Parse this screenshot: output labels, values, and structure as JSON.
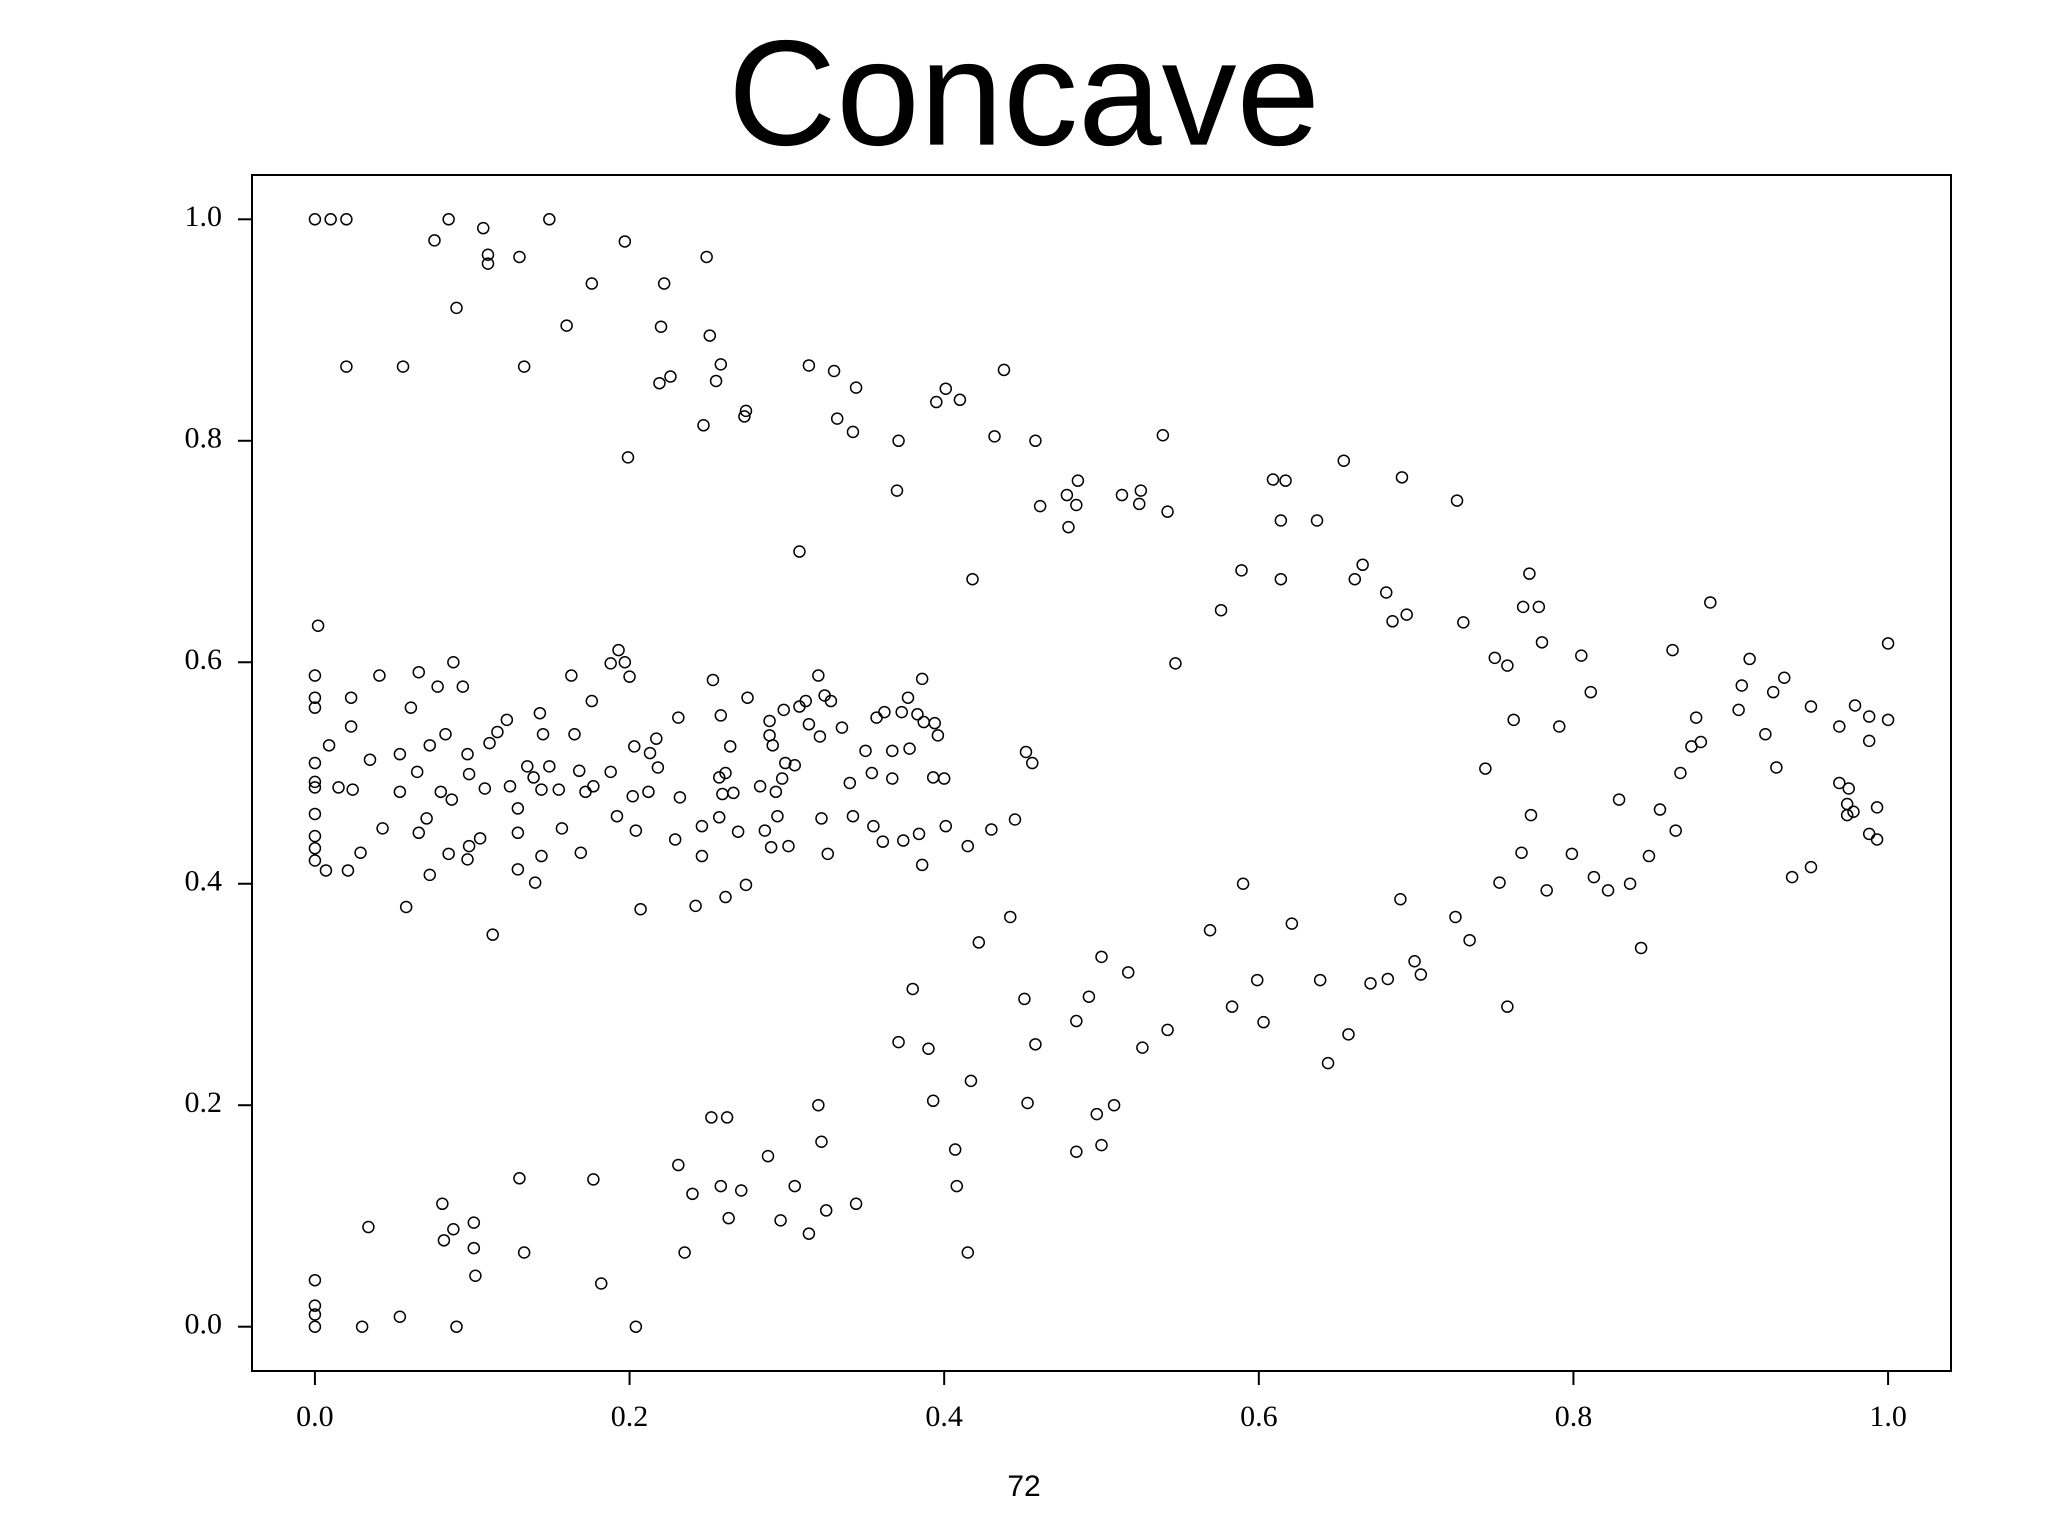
{
  "chart_data": {
    "type": "scatter",
    "title": "Concave",
    "x": [
      0,
      0.01,
      0.02,
      0.02,
      0.056,
      0.076,
      0.085,
      0.09,
      0.107,
      0.11,
      0.11,
      0.13,
      0.133,
      0.149,
      0.16,
      0.176,
      0.197,
      0.199,
      0.22,
      0.222,
      0.219,
      0.226,
      0.249,
      0.251,
      0.255,
      0.258,
      0.247,
      0.274,
      0.273,
      0.314,
      0.33,
      0.332,
      0.344,
      0.342,
      0.371,
      0.37,
      0.308,
      0.395,
      0.401,
      0.41,
      0.418,
      0.432,
      0.438,
      0.458,
      0.461,
      0.478,
      0.479,
      0.484,
      0.485,
      0.513,
      0.525,
      0.524,
      0.539,
      0.542,
      0.547,
      0.576,
      0.589,
      0.609,
      0.617,
      0.614,
      0.614,
      0.637,
      0.654,
      0.661,
      0.666,
      0.681,
      0.685,
      0.691,
      0.694,
      0.726,
      0.73,
      0.75,
      0.758,
      0.762,
      0.768,
      0.772,
      0.778,
      0.78,
      0.791,
      0.805,
      0.811,
      0.863,
      0.887,
      0.878,
      0.881,
      0.875,
      0.868,
      0.912,
      0.907,
      0.905,
      0.927,
      0.934,
      0.922,
      0.929,
      0.951,
      0.969,
      0.979,
      0.988,
      0.988,
      1.0,
      1.0,
      0.002,
      0,
      0,
      0,
      0,
      0,
      0,
      0,
      0,
      0,
      0,
      0.007,
      0.009,
      0.015,
      0.023,
      0.023,
      0.021,
      0.024,
      0.029,
      0.035,
      0.041,
      0.043,
      0.054,
      0.054,
      0.058,
      0.061,
      0.065,
      0.066,
      0.066,
      0.071,
      0.073,
      0.073,
      0.078,
      0.08,
      0.083,
      0.085,
      0.088,
      0.087,
      0.094,
      0.097,
      0.098,
      0.098,
      0.097,
      0.105,
      0.108,
      0.111,
      0.113,
      0.116,
      0.122,
      0.124,
      0.129,
      0.129,
      0.129,
      0.135,
      0.139,
      0.14,
      0.143,
      0.145,
      0.144,
      0.144,
      0.149,
      0.155,
      0.157,
      0.163,
      0.165,
      0.168,
      0.172,
      0.169,
      0.176,
      0.177,
      0.188,
      0.193,
      0.188,
      0.197,
      0.2,
      0.192,
      0.203,
      0.202,
      0.204,
      0.207,
      0.213,
      0.217,
      0.212,
      0.218,
      0.229,
      0.231,
      0.232,
      0.242,
      0.246,
      0.246,
      0.253,
      0.258,
      0.257,
      0.261,
      0.257,
      0.259,
      0.261,
      0.264,
      0.266,
      0.269,
      0.275,
      0.274,
      0.283,
      0.286,
      0.289,
      0.289,
      0.29,
      0.291,
      0.293,
      0.294,
      0.297,
      0.298,
      0.299,
      0.301,
      0.305,
      0.308,
      0.312,
      0.314,
      0.32,
      0.321,
      0.322,
      0.324,
      0.326,
      0.328,
      0.335,
      0.34,
      0.342,
      0.35,
      0.354,
      0.355,
      0.357,
      0.361,
      0.362,
      0.367,
      0.367,
      0.373,
      0.374,
      0.377,
      0.378,
      0.383,
      0.384,
      0.386,
      0.387,
      0.386,
      0.393,
      0.394,
      0.396,
      0.4,
      0.401,
      0.415,
      0.445,
      0.43,
      0.452,
      0.456,
      0,
      0,
      0,
      0,
      0.03,
      0.034,
      0.054,
      0.081,
      0.082,
      0.088,
      0.09,
      0.101,
      0.101,
      0.102,
      0.13,
      0.133,
      0.177,
      0.182,
      0.204,
      0.231,
      0.235,
      0.24,
      0.252,
      0.258,
      0.262,
      0.263,
      0.271,
      0.288,
      0.296,
      0.305,
      0.314,
      0.32,
      0.322,
      0.325,
      0.344,
      0.371,
      0.38,
      0.39,
      0.393,
      0.407,
      0.408,
      0.415,
      0.417,
      0.422,
      0.442,
      0.451,
      0.453,
      0.458,
      0.484,
      0.484,
      0.492,
      0.497,
      0.5,
      0.5,
      0.508,
      0.517,
      0.526,
      0.542,
      0.569,
      0.583,
      0.59,
      0.599,
      0.603,
      0.621,
      0.639,
      0.644,
      0.657,
      0.671,
      0.682,
      0.69,
      0.699,
      0.703,
      0.725,
      0.734,
      0.744,
      0.753,
      0.758,
      0.767,
      0.773,
      0.783,
      0.799,
      0.813,
      0.822,
      0.829,
      0.836,
      0.843,
      0.848,
      0.855,
      0.865,
      0.939,
      0.951,
      0.969,
      0.975,
      0.974,
      0.974,
      0.978,
      0.988,
      0.993,
      0.993
    ],
    "values": [
      1.0,
      1.0,
      1.0,
      0.867,
      0.867,
      0.981,
      1.0,
      0.92,
      0.992,
      0.968,
      0.96,
      0.966,
      0.867,
      1.0,
      0.904,
      0.942,
      0.98,
      0.785,
      0.903,
      0.942,
      0.852,
      0.858,
      0.966,
      0.895,
      0.854,
      0.869,
      0.814,
      0.827,
      0.822,
      0.868,
      0.863,
      0.82,
      0.848,
      0.808,
      0.8,
      0.755,
      0.7,
      0.835,
      0.847,
      0.837,
      0.675,
      0.804,
      0.864,
      0.8,
      0.741,
      0.751,
      0.722,
      0.742,
      0.764,
      0.751,
      0.755,
      0.743,
      0.805,
      0.736,
      0.599,
      0.647,
      0.683,
      0.765,
      0.764,
      0.728,
      0.675,
      0.728,
      0.782,
      0.675,
      0.688,
      0.663,
      0.637,
      0.767,
      0.643,
      0.746,
      0.636,
      0.604,
      0.597,
      0.548,
      0.65,
      0.68,
      0.65,
      0.618,
      0.542,
      0.606,
      0.573,
      0.611,
      0.654,
      0.55,
      0.528,
      0.524,
      0.5,
      0.603,
      0.579,
      0.557,
      0.573,
      0.586,
      0.535,
      0.505,
      0.56,
      0.542,
      0.561,
      0.551,
      0.529,
      0.617,
      0.548,
      0.633,
      0.588,
      0.568,
      0.559,
      0.509,
      0.492,
      0.487,
      0.463,
      0.443,
      0.432,
      0.421,
      0.412,
      0.525,
      0.487,
      0.568,
      0.542,
      0.412,
      0.485,
      0.428,
      0.512,
      0.588,
      0.45,
      0.517,
      0.483,
      0.379,
      0.559,
      0.501,
      0.591,
      0.446,
      0.459,
      0.525,
      0.408,
      0.578,
      0.483,
      0.535,
      0.427,
      0.6,
      0.476,
      0.578,
      0.517,
      0.499,
      0.434,
      0.422,
      0.441,
      0.486,
      0.527,
      0.354,
      0.537,
      0.548,
      0.488,
      0.468,
      0.446,
      0.413,
      0.506,
      0.496,
      0.401,
      0.554,
      0.535,
      0.485,
      0.425,
      0.506,
      0.485,
      0.45,
      0.588,
      0.535,
      0.502,
      0.483,
      0.428,
      0.565,
      0.488,
      0.501,
      0.611,
      0.599,
      0.6,
      0.587,
      0.461,
      0.524,
      0.479,
      0.448,
      0.377,
      0.518,
      0.531,
      0.483,
      0.505,
      0.44,
      0.55,
      0.478,
      0.38,
      0.452,
      0.425,
      0.584,
      0.552,
      0.496,
      0.5,
      0.46,
      0.481,
      0.388,
      0.524,
      0.482,
      0.447,
      0.568,
      0.399,
      0.488,
      0.448,
      0.547,
      0.534,
      0.433,
      0.525,
      0.483,
      0.461,
      0.495,
      0.557,
      0.509,
      0.434,
      0.507,
      0.56,
      0.565,
      0.544,
      0.588,
      0.533,
      0.459,
      0.57,
      0.427,
      0.565,
      0.541,
      0.491,
      0.461,
      0.52,
      0.5,
      0.452,
      0.55,
      0.438,
      0.555,
      0.52,
      0.495,
      0.555,
      0.439,
      0.568,
      0.522,
      0.553,
      0.445,
      0.585,
      0.546,
      0.417,
      0.496,
      0.545,
      0.534,
      0.495,
      0.452,
      0.434,
      0.458,
      0.449,
      0.519,
      0.509,
      0.042,
      0.019,
      0.011,
      0,
      0,
      0.09,
      0.009,
      0.111,
      0.078,
      0.088,
      0,
      0.094,
      0.071,
      0.046,
      0.134,
      0.067,
      0.133,
      0.039,
      0,
      0.146,
      0.067,
      0.12,
      0.189,
      0.127,
      0.189,
      0.098,
      0.123,
      0.154,
      0.096,
      0.127,
      0.084,
      0.2,
      0.167,
      0.105,
      0.111,
      0.257,
      0.305,
      0.251,
      0.204,
      0.16,
      0.127,
      0.067,
      0.222,
      0.347,
      0.37,
      0.296,
      0.202,
      0.255,
      0.276,
      0.158,
      0.298,
      0.192,
      0.334,
      0.164,
      0.2,
      0.32,
      0.252,
      0.268,
      0.358,
      0.289,
      0.4,
      0.313,
      0.275,
      0.364,
      0.313,
      0.238,
      0.264,
      0.31,
      0.314,
      0.386,
      0.33,
      0.318,
      0.37,
      0.349,
      0.504,
      0.401,
      0.289,
      0.428,
      0.462,
      0.394,
      0.427,
      0.406,
      0.394,
      0.476,
      0.4,
      0.342,
      0.425,
      0.467,
      0.448,
      0.406,
      0.415,
      0.491,
      0.486,
      0.472,
      0.462,
      0.465,
      0.445,
      0.469,
      0.44
    ],
    "xlim": [
      -0.04,
      1.04
    ],
    "ylim": [
      -0.04,
      1.04
    ],
    "xticks": [
      {
        "value": 0,
        "label": "0.0"
      },
      0.2,
      0.4,
      0.6,
      0.8,
      {
        "value": 1,
        "label": "1.0"
      }
    ],
    "yticks": [
      {
        "value": 0,
        "label": "0.0"
      },
      0.2,
      0.4,
      0.6,
      0.8,
      {
        "value": 1,
        "label": "1.0"
      }
    ],
    "color": "#000000"
  },
  "page_number": "72"
}
